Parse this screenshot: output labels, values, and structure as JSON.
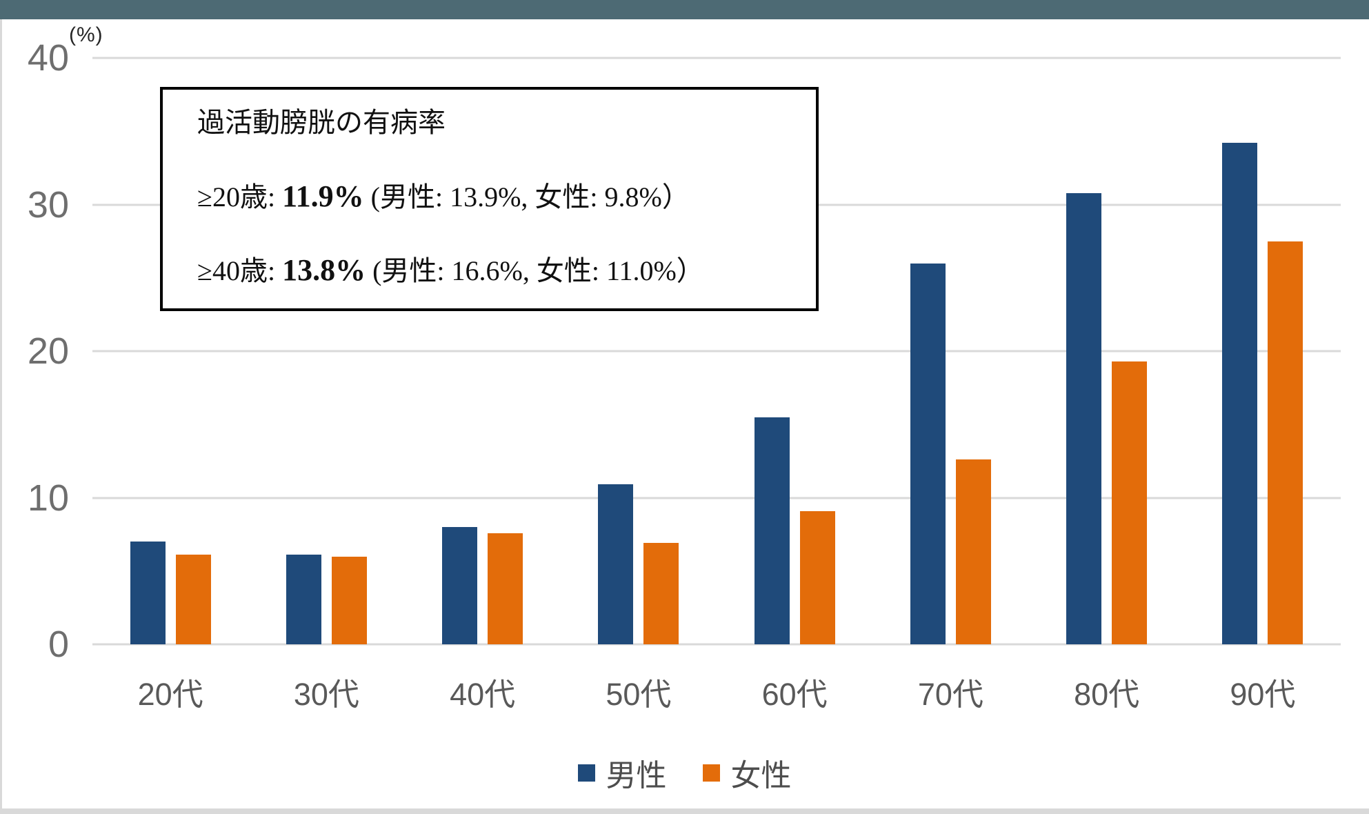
{
  "window": {
    "top_bar_color": "#4D6A74",
    "edge_strip_color": "#D9D9D9",
    "background": "#ffffff"
  },
  "y_axis": {
    "unit_label": "(%)",
    "ticks": [
      "40",
      "30",
      "20",
      "10",
      "0"
    ],
    "max": 40,
    "tick_color": "#6e6e6e",
    "gridline_color": "#D9D9D9"
  },
  "chart_data": {
    "type": "bar",
    "title": "",
    "categories": [
      "20代",
      "30代",
      "40代",
      "50代",
      "60代",
      "70代",
      "80代",
      "90代"
    ],
    "series": [
      {
        "key": "male",
        "name": "男性",
        "color": "#1F4A7A",
        "values": [
          7.0,
          6.1,
          8.0,
          10.9,
          15.5,
          26.0,
          30.8,
          34.2
        ]
      },
      {
        "key": "female",
        "name": "女性",
        "color": "#E36C0A",
        "values": [
          6.1,
          6.0,
          7.6,
          6.9,
          9.1,
          12.6,
          19.3,
          27.5
        ]
      }
    ],
    "xlabel": "",
    "ylabel": "(%)",
    "ylim": [
      0,
      40
    ],
    "grid": true,
    "legend_position": "bottom"
  },
  "annotation": {
    "title": "過活動膀胱の有病率",
    "lines": [
      {
        "pre": "≥20歳: ",
        "value": "11.9%",
        "post": " (男性: 13.9%, 女性: 9.8%）"
      },
      {
        "pre": "≥40歳: ",
        "value": "13.8%",
        "post": " (男性: 16.6%, 女性: 11.0%）"
      }
    ]
  }
}
